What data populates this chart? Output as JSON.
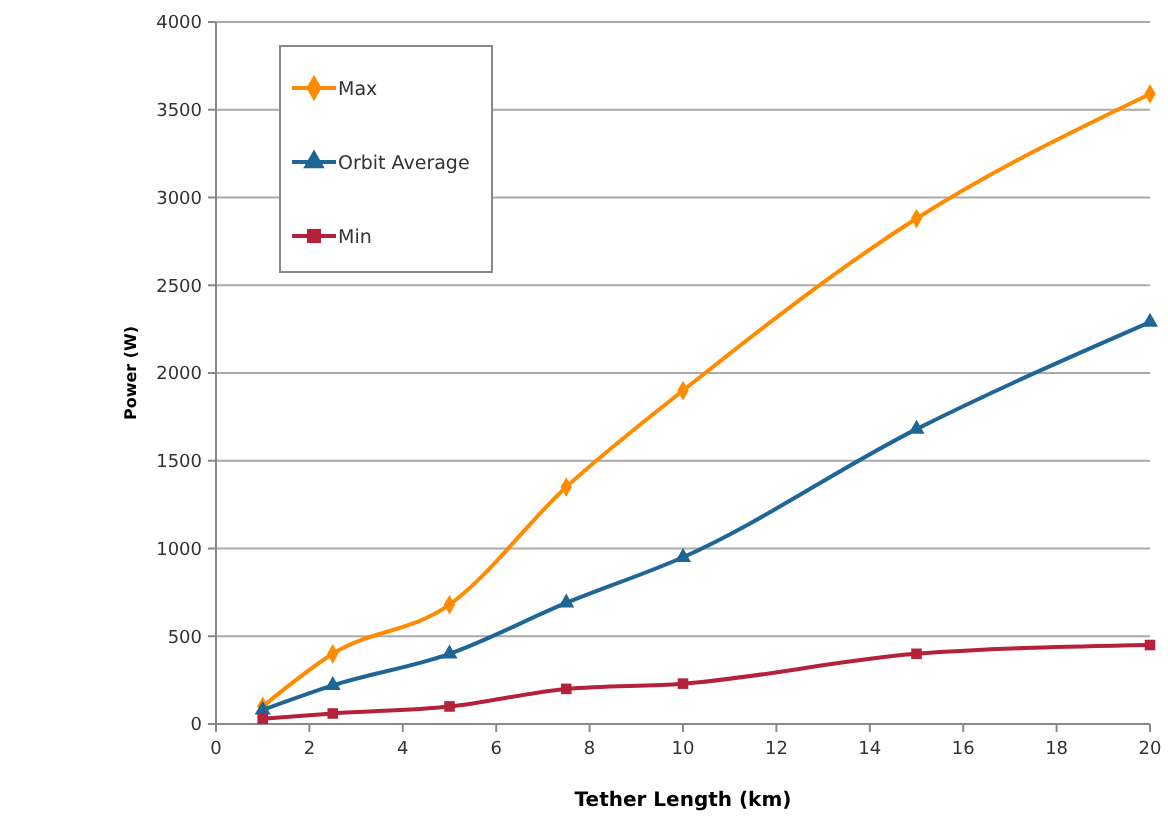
{
  "chart_data": {
    "type": "line",
    "xlabel": "Tether Length (km)",
    "ylabel": "Power (W)",
    "x": [
      1,
      2.5,
      5,
      7.5,
      10,
      15,
      20
    ],
    "series": [
      {
        "name": "Max",
        "color": "#ff8c00",
        "marker": "diamond",
        "values": [
          100,
          400,
          680,
          1350,
          1900,
          2880,
          3590
        ]
      },
      {
        "name": "Orbit Average",
        "color": "#1f6596",
        "marker": "triangle",
        "values": [
          80,
          220,
          400,
          690,
          950,
          1680,
          2290
        ]
      },
      {
        "name": "Min",
        "color": "#b5213a",
        "marker": "square",
        "values": [
          30,
          60,
          100,
          200,
          230,
          400,
          450
        ]
      }
    ],
    "xlim": [
      0,
      20
    ],
    "xticks": [
      0,
      2,
      4,
      6,
      8,
      10,
      12,
      14,
      16,
      18,
      20
    ],
    "ylim": [
      0,
      4000
    ],
    "yticks": [
      0,
      500,
      1000,
      1500,
      2000,
      2500,
      3000,
      3500,
      4000
    ],
    "grid": "y",
    "legend": "top left"
  }
}
